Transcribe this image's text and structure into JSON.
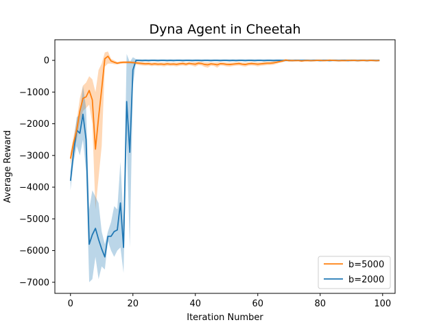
{
  "chart_data": {
    "type": "line",
    "title": "Dyna Agent in Cheetah",
    "xlabel": "Iteration Number",
    "ylabel": "Average Reward",
    "xlim": [
      -5,
      104
    ],
    "ylim": [
      -7350,
      650
    ],
    "xticks": [
      0,
      20,
      40,
      60,
      80,
      100
    ],
    "yticks": [
      0,
      -1000,
      -2000,
      -3000,
      -4000,
      -5000,
      -6000,
      -7000
    ],
    "grid": false,
    "legend_position": "lower-right",
    "series": [
      {
        "name": "b=5000",
        "color": "#ff7f0e",
        "x": [
          0,
          1,
          2,
          3,
          4,
          5,
          6,
          7,
          8,
          9,
          10,
          11,
          12,
          13,
          14,
          15,
          16,
          17,
          18,
          19,
          20,
          21,
          22,
          23,
          24,
          25,
          26,
          27,
          28,
          29,
          30,
          31,
          32,
          33,
          34,
          35,
          36,
          37,
          38,
          39,
          40,
          41,
          42,
          43,
          44,
          45,
          46,
          47,
          48,
          49,
          50,
          51,
          52,
          53,
          54,
          55,
          56,
          57,
          58,
          59,
          60,
          61,
          62,
          63,
          64,
          65,
          66,
          67,
          68,
          69,
          70,
          71,
          72,
          73,
          74,
          75,
          76,
          77,
          78,
          79,
          80,
          81,
          82,
          83,
          84,
          85,
          86,
          87,
          88,
          89,
          90,
          91,
          92,
          93,
          94,
          95,
          96,
          97,
          98,
          99
        ],
        "y": [
          -3100,
          -2600,
          -2200,
          -1600,
          -1200,
          -1150,
          -950,
          -1250,
          -2800,
          -1800,
          -900,
          50,
          130,
          -20,
          -60,
          -90,
          -70,
          -60,
          -60,
          -60,
          -70,
          -80,
          -90,
          -100,
          -110,
          -105,
          -120,
          -110,
          -120,
          -115,
          -125,
          -110,
          -120,
          -115,
          -125,
          -110,
          -100,
          -120,
          -95,
          -110,
          -120,
          -90,
          -100,
          -130,
          -140,
          -110,
          -120,
          -140,
          -105,
          -110,
          -125,
          -130,
          -120,
          -110,
          -100,
          -120,
          -130,
          -110,
          -100,
          -110,
          -120,
          -110,
          -100,
          -90,
          -90,
          -80,
          -60,
          -40,
          -20,
          10,
          -10,
          -5,
          -10,
          -5,
          -20,
          -10,
          -5,
          -10,
          -10,
          0,
          0,
          -10,
          -5,
          5,
          0,
          -5,
          -10,
          -5,
          -10,
          0,
          -5,
          0,
          -10,
          -5,
          0,
          -10,
          0,
          -5,
          -10,
          -5
        ],
        "lower": [
          -3300,
          -2800,
          -2500,
          -2000,
          -1600,
          -1500,
          -1400,
          -2000,
          -4700,
          -3700,
          -2700,
          -200,
          -100,
          -100,
          -120,
          -130,
          -110,
          -100,
          -100,
          -100,
          -110,
          -130,
          -150,
          -160,
          -170,
          -160,
          -180,
          -170,
          -180,
          -175,
          -190,
          -170,
          -180,
          -175,
          -190,
          -170,
          -160,
          -180,
          -150,
          -170,
          -200,
          -150,
          -160,
          -210,
          -230,
          -170,
          -180,
          -230,
          -160,
          -170,
          -190,
          -200,
          -180,
          -170,
          -160,
          -180,
          -200,
          -170,
          -160,
          -170,
          -190,
          -170,
          -160,
          -150,
          -150,
          -140,
          -110,
          -80,
          -60,
          -20,
          -40,
          -25,
          -30,
          -25,
          -50,
          -30,
          -20,
          -30,
          -30,
          -15,
          -15,
          -30,
          -20,
          -10,
          -15,
          -20,
          -30,
          -20,
          -30,
          -15,
          -20,
          -15,
          -30,
          -20,
          -15,
          -30,
          -15,
          -20,
          -30,
          -20
        ],
        "upper": [
          -2900,
          -2400,
          -1900,
          -1200,
          -800,
          -700,
          -500,
          -600,
          -1000,
          -300,
          -100,
          250,
          280,
          50,
          0,
          -50,
          -30,
          -20,
          -20,
          -20,
          -30,
          -30,
          -40,
          -50,
          -60,
          -55,
          -70,
          -60,
          -70,
          -65,
          -70,
          -60,
          -70,
          -65,
          -70,
          -60,
          -50,
          -70,
          -50,
          -60,
          -50,
          -40,
          -50,
          -60,
          -60,
          -60,
          -70,
          -60,
          -60,
          -60,
          -70,
          -70,
          -70,
          -60,
          -50,
          -70,
          -70,
          -60,
          -50,
          -60,
          -60,
          -60,
          -50,
          -40,
          -40,
          -30,
          -20,
          0,
          20,
          40,
          20,
          15,
          10,
          15,
          10,
          10,
          10,
          10,
          10,
          15,
          15,
          10,
          10,
          20,
          15,
          10,
          10,
          10,
          10,
          15,
          10,
          15,
          10,
          10,
          15,
          10,
          15,
          10,
          10,
          10
        ]
      },
      {
        "name": "b=2000",
        "color": "#1f77b4",
        "x": [
          0,
          1,
          2,
          3,
          4,
          5,
          6,
          7,
          8,
          9,
          10,
          11,
          12,
          13,
          14,
          15,
          16,
          17,
          18,
          19,
          20,
          21,
          22,
          23,
          24,
          25,
          26,
          27,
          28,
          29,
          30,
          31,
          32,
          33,
          34,
          35,
          36,
          37,
          38,
          39,
          40,
          41,
          42,
          43,
          44,
          45,
          46,
          47,
          48,
          49,
          50,
          51,
          52,
          53,
          54,
          55,
          56,
          57,
          58,
          59,
          60,
          61,
          62,
          63,
          64,
          65,
          66,
          67,
          68,
          69,
          70,
          71,
          72,
          73,
          74,
          75,
          76,
          77,
          78,
          79,
          80,
          81,
          82,
          83,
          84,
          85,
          86,
          87,
          88,
          89,
          90,
          91,
          92,
          93,
          94,
          95,
          96,
          97,
          98,
          99
        ],
        "y": [
          -3800,
          -2900,
          -2200,
          -2300,
          -1700,
          -2500,
          -5800,
          -5500,
          -5300,
          -5650,
          -5950,
          -6200,
          -5550,
          -5550,
          -5400,
          -5350,
          -4500,
          -5900,
          -1300,
          -2900,
          -300,
          0,
          0,
          -5,
          0,
          -5,
          0,
          0,
          -5,
          0,
          0,
          -5,
          0,
          -5,
          0,
          0,
          -5,
          0,
          0,
          -5,
          0,
          0,
          -5,
          0,
          0,
          -5,
          0,
          0,
          -5,
          0,
          0,
          -5,
          0,
          -5,
          0,
          0,
          -5,
          0,
          0,
          -5,
          0,
          0,
          -5,
          0,
          0,
          -5,
          0,
          0,
          -5,
          0,
          0,
          -5,
          0,
          0,
          -5,
          0,
          0,
          -5,
          0,
          0,
          -5,
          0,
          0,
          -5,
          0,
          0,
          -5,
          0,
          0,
          -5,
          0,
          0,
          -5,
          0,
          0,
          -5,
          0,
          0,
          -5,
          0
        ],
        "lower": [
          -4100,
          -3200,
          -2700,
          -3000,
          -2500,
          -3500,
          -7000,
          -6900,
          -6200,
          -6900,
          -6500,
          -6600,
          -5700,
          -6000,
          -6200,
          -6000,
          -5900,
          -6700,
          -2500,
          -5900,
          -800,
          -40,
          -30,
          -40,
          -30,
          -40,
          -30,
          -30,
          -40,
          -30,
          -30,
          -40,
          -30,
          -40,
          -30,
          -30,
          -40,
          -30,
          -30,
          -40,
          -30,
          -30,
          -40,
          -30,
          -30,
          -40,
          -30,
          -30,
          -40,
          -30,
          -30,
          -40,
          -30,
          -40,
          -30,
          -30,
          -40,
          -30,
          -30,
          -40,
          -30,
          -30,
          -40,
          -30,
          -30,
          -40,
          -30,
          -30,
          -40,
          -30,
          -30,
          -40,
          -30,
          -30,
          -40,
          -30,
          -30,
          -40,
          -30,
          -30,
          -40,
          -30,
          -30,
          -40,
          -30,
          -30,
          -40,
          -30,
          -30,
          -40,
          -30,
          -30,
          -40,
          -30,
          -30,
          -40,
          -30,
          -30,
          -40,
          -30
        ],
        "upper": [
          -3500,
          -2600,
          -1800,
          -1700,
          -800,
          -1500,
          -4700,
          -4100,
          -4300,
          -4500,
          -5400,
          -5800,
          -5400,
          -5100,
          -4600,
          -4700,
          -3200,
          -5100,
          200,
          -50,
          100,
          40,
          30,
          30,
          30,
          30,
          30,
          30,
          30,
          30,
          30,
          30,
          30,
          30,
          30,
          30,
          30,
          30,
          30,
          30,
          30,
          30,
          30,
          30,
          30,
          30,
          30,
          30,
          30,
          30,
          30,
          30,
          30,
          30,
          30,
          30,
          30,
          30,
          30,
          30,
          30,
          30,
          30,
          30,
          30,
          30,
          30,
          30,
          30,
          30,
          30,
          30,
          30,
          30,
          30,
          30,
          30,
          30,
          30,
          30,
          30,
          30,
          30,
          30,
          30,
          30,
          30,
          30,
          30,
          30,
          30,
          30,
          30,
          30,
          30,
          30,
          30,
          30,
          30,
          30
        ]
      }
    ]
  }
}
